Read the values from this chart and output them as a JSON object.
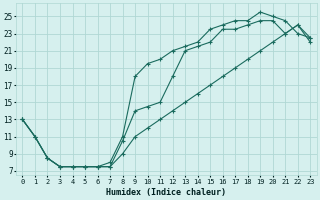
{
  "xlabel": "Humidex (Indice chaleur)",
  "bg_color": "#d6f0ee",
  "grid_color": "#b0d8d4",
  "line_color": "#1a6b5e",
  "xlim": [
    -0.5,
    23.5
  ],
  "ylim": [
    6.5,
    26.5
  ],
  "xticks": [
    0,
    1,
    2,
    3,
    4,
    5,
    6,
    7,
    8,
    9,
    10,
    11,
    12,
    13,
    14,
    15,
    16,
    17,
    18,
    19,
    20,
    21,
    22,
    23
  ],
  "yticks": [
    7,
    9,
    11,
    13,
    15,
    17,
    19,
    21,
    23,
    25
  ],
  "line1_x": [
    0,
    1,
    2,
    3,
    4,
    5,
    6,
    7,
    8,
    9,
    10,
    11,
    12,
    13,
    14,
    15,
    16,
    17,
    18,
    19,
    20,
    21,
    22,
    23
  ],
  "line1_y": [
    13,
    11,
    8.5,
    7.5,
    7.5,
    7.5,
    7.5,
    7.5,
    10.5,
    14,
    14.5,
    15,
    18,
    21,
    21.5,
    22,
    23.5,
    23.5,
    24,
    24.5,
    24.5,
    23,
    24,
    22
  ],
  "line2_x": [
    0,
    1,
    2,
    3,
    4,
    5,
    6,
    7,
    8,
    9,
    10,
    11,
    12,
    13,
    14,
    15,
    16,
    17,
    18,
    19,
    20,
    21,
    22,
    23
  ],
  "line2_y": [
    13,
    11,
    8.5,
    7.5,
    7.5,
    7.5,
    7.5,
    8,
    11,
    18,
    19.5,
    20,
    21,
    21.5,
    22,
    23.5,
    24,
    24.5,
    24.5,
    25.5,
    25,
    24.5,
    23,
    22.5
  ],
  "line3_x": [
    0,
    1,
    2,
    3,
    4,
    5,
    6,
    7,
    8,
    9,
    10,
    11,
    12,
    13,
    14,
    15,
    16,
    17,
    18,
    19,
    20,
    21,
    22,
    23
  ],
  "line3_y": [
    13,
    11,
    8.5,
    7.5,
    7.5,
    7.5,
    7.5,
    7.5,
    9,
    11,
    12,
    13,
    14,
    15,
    16,
    17,
    18,
    19,
    20,
    21,
    22,
    23,
    24,
    22.5
  ]
}
